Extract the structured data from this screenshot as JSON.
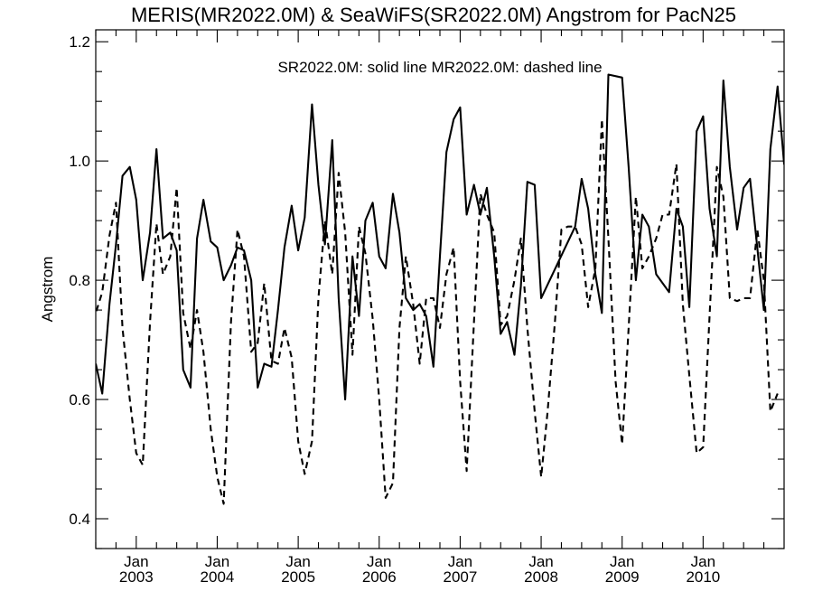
{
  "chart_data": {
    "type": "line",
    "title": "MERIS(MR2022.0M) & SeaWiFS(SR2022.0M)  Angstrom for PacN25",
    "annotation": "SR2022.0M: solid line   MR2022.0M: dashed line",
    "ylabel": "Angstrom",
    "xlabel": "",
    "xlim": [
      2002.5,
      2011.0
    ],
    "ylim": [
      0.35,
      1.22
    ],
    "yticks": [
      {
        "value": 0.4,
        "label": "0.4"
      },
      {
        "value": 0.6,
        "label": "0.6"
      },
      {
        "value": 0.8,
        "label": "0.8"
      },
      {
        "value": 1.0,
        "label": "1.0"
      },
      {
        "value": 1.2,
        "label": "1.2"
      }
    ],
    "xticks": [
      {
        "value": 2003.0,
        "month": "Jan",
        "year": "2003"
      },
      {
        "value": 2004.0,
        "month": "Jan",
        "year": "2004"
      },
      {
        "value": 2005.0,
        "month": "Jan",
        "year": "2005"
      },
      {
        "value": 2006.0,
        "month": "Jan",
        "year": "2006"
      },
      {
        "value": 2007.0,
        "month": "Jan",
        "year": "2007"
      },
      {
        "value": 2008.0,
        "month": "Jan",
        "year": "2008"
      },
      {
        "value": 2009.0,
        "month": "Jan",
        "year": "2009"
      },
      {
        "value": 2010.0,
        "month": "Jan",
        "year": "2010"
      }
    ],
    "series": [
      {
        "name": "SR2022.0M",
        "style": "solid",
        "points": [
          [
            2002.5,
            0.66
          ],
          [
            2002.58,
            0.61
          ],
          [
            2002.67,
            0.76
          ],
          [
            2002.75,
            0.86
          ],
          [
            2002.83,
            0.975
          ],
          [
            2002.92,
            0.99
          ],
          [
            2003.0,
            0.935
          ],
          [
            2003.08,
            0.8
          ],
          [
            2003.17,
            0.88
          ],
          [
            2003.25,
            1.02
          ],
          [
            2003.33,
            0.87
          ],
          [
            2003.42,
            0.88
          ],
          [
            2003.5,
            0.85
          ],
          [
            2003.58,
            0.65
          ],
          [
            2003.67,
            0.62
          ],
          [
            2003.75,
            0.87
          ],
          [
            2003.83,
            0.935
          ],
          [
            2003.92,
            0.865
          ],
          [
            2004.0,
            0.855
          ],
          [
            2004.08,
            0.8
          ],
          [
            2004.17,
            0.825
          ],
          [
            2004.25,
            0.855
          ],
          [
            2004.33,
            0.85
          ],
          [
            2004.42,
            0.8
          ],
          [
            2004.5,
            0.62
          ],
          [
            2004.58,
            0.66
          ],
          [
            2004.67,
            0.655
          ],
          [
            2004.75,
            0.75
          ],
          [
            2004.83,
            0.855
          ],
          [
            2004.92,
            0.925
          ],
          [
            2005.0,
            0.85
          ],
          [
            2005.08,
            0.905
          ],
          [
            2005.17,
            1.095
          ],
          [
            2005.25,
            0.96
          ],
          [
            2005.33,
            0.86
          ],
          [
            2005.42,
            1.035
          ],
          [
            2005.5,
            0.77
          ],
          [
            2005.58,
            0.6
          ],
          [
            2005.67,
            0.84
          ],
          [
            2005.75,
            0.74
          ],
          [
            2005.83,
            0.9
          ],
          [
            2005.92,
            0.93
          ],
          [
            2006.0,
            0.84
          ],
          [
            2006.08,
            0.82
          ],
          [
            2006.17,
            0.945
          ],
          [
            2006.25,
            0.88
          ],
          [
            2006.33,
            0.77
          ],
          [
            2006.42,
            0.75
          ],
          [
            2006.5,
            0.76
          ],
          [
            2006.58,
            0.74
          ],
          [
            2006.67,
            0.655
          ],
          [
            2006.75,
            0.84
          ],
          [
            2006.83,
            1.015
          ],
          [
            2006.92,
            1.07
          ],
          [
            2007.0,
            1.09
          ],
          [
            2007.08,
            0.91
          ],
          [
            2007.17,
            0.96
          ],
          [
            2007.25,
            0.91
          ],
          [
            2007.33,
            0.955
          ],
          [
            2007.42,
            0.84
          ],
          [
            2007.5,
            0.71
          ],
          [
            2007.58,
            0.73
          ],
          [
            2007.67,
            0.675
          ],
          [
            2007.75,
            0.79
          ],
          [
            2007.83,
            0.965
          ],
          [
            2007.92,
            0.96
          ],
          [
            2008.0,
            0.77
          ],
          [
            2008.42,
            0.89
          ],
          [
            2008.5,
            0.97
          ],
          [
            2008.58,
            0.92
          ],
          [
            2008.67,
            0.81
          ],
          [
            2008.75,
            0.745
          ],
          [
            2008.83,
            1.145
          ],
          [
            2009.0,
            1.14
          ],
          [
            2009.08,
            0.99
          ],
          [
            2009.17,
            0.8
          ],
          [
            2009.25,
            0.91
          ],
          [
            2009.33,
            0.89
          ],
          [
            2009.42,
            0.81
          ],
          [
            2009.58,
            0.78
          ],
          [
            2009.67,
            0.92
          ],
          [
            2009.75,
            0.89
          ],
          [
            2009.83,
            0.755
          ],
          [
            2009.92,
            1.05
          ],
          [
            2010.0,
            1.075
          ],
          [
            2010.08,
            0.92
          ],
          [
            2010.17,
            0.84
          ],
          [
            2010.25,
            1.135
          ],
          [
            2010.33,
            0.99
          ],
          [
            2010.42,
            0.885
          ],
          [
            2010.5,
            0.955
          ],
          [
            2010.58,
            0.97
          ],
          [
            2010.75,
            0.75
          ],
          [
            2010.83,
            1.02
          ],
          [
            2010.92,
            1.125
          ],
          [
            2011.0,
            0.995
          ],
          [
            2011.08,
            1.1
          ]
        ]
      },
      {
        "name": "MR2022.0M",
        "style": "dashed",
        "points": [
          [
            2002.42,
            0.755
          ],
          [
            2002.5,
            0.745
          ],
          [
            2002.58,
            0.78
          ],
          [
            2002.67,
            0.875
          ],
          [
            2002.75,
            0.93
          ],
          [
            2002.83,
            0.72
          ],
          [
            2002.92,
            0.6
          ],
          [
            2003.0,
            0.51
          ],
          [
            2003.08,
            0.49
          ],
          [
            2003.17,
            0.73
          ],
          [
            2003.25,
            0.895
          ],
          [
            2003.33,
            0.81
          ],
          [
            2003.42,
            0.84
          ],
          [
            2003.5,
            0.955
          ],
          [
            2003.58,
            0.745
          ],
          [
            2003.67,
            0.685
          ],
          [
            2003.75,
            0.75
          ],
          [
            2003.83,
            0.68
          ],
          [
            2003.92,
            0.55
          ],
          [
            2004.0,
            0.47
          ],
          [
            2004.08,
            0.425
          ],
          [
            2004.17,
            0.73
          ],
          [
            2004.25,
            0.885
          ],
          [
            2004.33,
            0.84
          ],
          [
            2004.42,
            0.68
          ],
          [
            2004.5,
            0.695
          ],
          [
            2004.58,
            0.795
          ],
          [
            2004.67,
            0.665
          ],
          [
            2004.75,
            0.66
          ],
          [
            2004.83,
            0.72
          ],
          [
            2004.92,
            0.67
          ],
          [
            2005.0,
            0.53
          ],
          [
            2005.08,
            0.475
          ],
          [
            2005.17,
            0.53
          ],
          [
            2005.25,
            0.77
          ],
          [
            2005.33,
            0.9
          ],
          [
            2005.42,
            0.81
          ],
          [
            2005.5,
            0.98
          ],
          [
            2005.58,
            0.88
          ],
          [
            2005.67,
            0.675
          ],
          [
            2005.75,
            0.89
          ],
          [
            2005.83,
            0.845
          ],
          [
            2005.92,
            0.735
          ],
          [
            2006.0,
            0.6
          ],
          [
            2006.08,
            0.435
          ],
          [
            2006.17,
            0.46
          ],
          [
            2006.25,
            0.72
          ],
          [
            2006.33,
            0.84
          ],
          [
            2006.42,
            0.76
          ],
          [
            2006.5,
            0.66
          ],
          [
            2006.58,
            0.77
          ],
          [
            2006.67,
            0.77
          ],
          [
            2006.75,
            0.72
          ],
          [
            2006.83,
            0.81
          ],
          [
            2006.92,
            0.855
          ],
          [
            2007.0,
            0.63
          ],
          [
            2007.08,
            0.48
          ],
          [
            2007.17,
            0.73
          ],
          [
            2007.25,
            0.945
          ],
          [
            2007.33,
            0.91
          ],
          [
            2007.42,
            0.88
          ],
          [
            2007.5,
            0.725
          ],
          [
            2007.58,
            0.74
          ],
          [
            2007.67,
            0.8
          ],
          [
            2007.75,
            0.87
          ],
          [
            2007.83,
            0.72
          ],
          [
            2007.92,
            0.58
          ],
          [
            2008.0,
            0.47
          ],
          [
            2008.08,
            0.58
          ],
          [
            2008.17,
            0.73
          ],
          [
            2008.25,
            0.885
          ],
          [
            2008.33,
            0.89
          ],
          [
            2008.42,
            0.89
          ],
          [
            2008.5,
            0.86
          ],
          [
            2008.58,
            0.755
          ],
          [
            2008.67,
            0.82
          ],
          [
            2008.75,
            1.07
          ],
          [
            2008.83,
            0.87
          ],
          [
            2008.92,
            0.63
          ],
          [
            2009.0,
            0.525
          ],
          [
            2009.08,
            0.72
          ],
          [
            2009.17,
            0.94
          ],
          [
            2009.25,
            0.82
          ],
          [
            2009.33,
            0.84
          ],
          [
            2009.42,
            0.87
          ],
          [
            2009.5,
            0.91
          ],
          [
            2009.58,
            0.91
          ],
          [
            2009.67,
            0.995
          ],
          [
            2009.75,
            0.76
          ],
          [
            2009.83,
            0.64
          ],
          [
            2009.92,
            0.51
          ],
          [
            2010.0,
            0.52
          ],
          [
            2010.08,
            0.74
          ],
          [
            2010.17,
            0.99
          ],
          [
            2010.25,
            0.94
          ],
          [
            2010.33,
            0.77
          ],
          [
            2010.42,
            0.765
          ],
          [
            2010.5,
            0.77
          ],
          [
            2010.58,
            0.77
          ],
          [
            2010.67,
            0.885
          ],
          [
            2010.75,
            0.8
          ],
          [
            2010.83,
            0.58
          ],
          [
            2010.92,
            0.61
          ]
        ]
      }
    ]
  }
}
